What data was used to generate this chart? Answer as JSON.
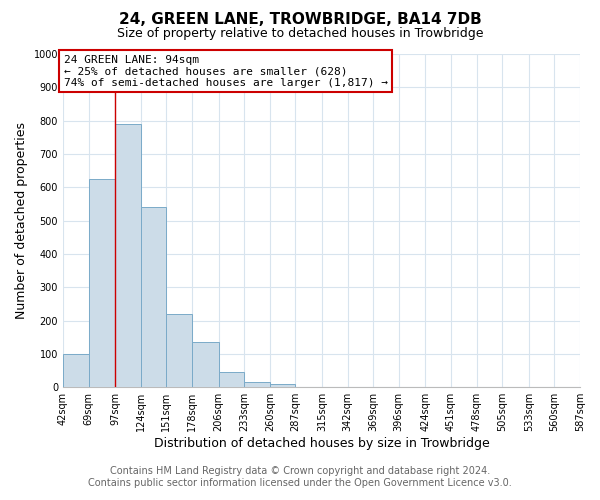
{
  "title": "24, GREEN LANE, TROWBRIDGE, BA14 7DB",
  "subtitle": "Size of property relative to detached houses in Trowbridge",
  "xlabel": "Distribution of detached houses by size in Trowbridge",
  "ylabel": "Number of detached properties",
  "bar_values": [
    100,
    625,
    790,
    540,
    220,
    135,
    45,
    15,
    10,
    0,
    0,
    0,
    0,
    0,
    0,
    0,
    0,
    0,
    0,
    0
  ],
  "bin_edges": [
    42,
    69,
    97,
    124,
    151,
    178,
    206,
    233,
    260,
    287,
    315,
    342,
    369,
    396,
    424,
    451,
    478,
    505,
    533,
    560,
    587
  ],
  "x_tick_labels": [
    "42sqm",
    "69sqm",
    "97sqm",
    "124sqm",
    "151sqm",
    "178sqm",
    "206sqm",
    "233sqm",
    "260sqm",
    "287sqm",
    "315sqm",
    "342sqm",
    "369sqm",
    "396sqm",
    "424sqm",
    "451sqm",
    "478sqm",
    "505sqm",
    "533sqm",
    "560sqm",
    "587sqm"
  ],
  "bar_color": "#ccdce8",
  "bar_edgecolor": "#7aaac8",
  "property_line_x": 97,
  "property_line_color": "#cc0000",
  "annotation_line0": "24 GREEN LANE: 94sqm",
  "annotation_line1": "← 25% of detached houses are smaller (628)",
  "annotation_line2": "74% of semi-detached houses are larger (1,817) →",
  "annotation_box_color": "#ffffff",
  "annotation_box_edgecolor": "#cc0000",
  "ylim": [
    0,
    1000
  ],
  "footer_line1": "Contains HM Land Registry data © Crown copyright and database right 2024.",
  "footer_line2": "Contains public sector information licensed under the Open Government Licence v3.0.",
  "background_color": "#ffffff",
  "grid_color": "#d8e4ee",
  "title_fontsize": 11,
  "subtitle_fontsize": 9,
  "axis_label_fontsize": 9,
  "tick_fontsize": 7,
  "annot_fontsize": 8,
  "footer_fontsize": 7
}
